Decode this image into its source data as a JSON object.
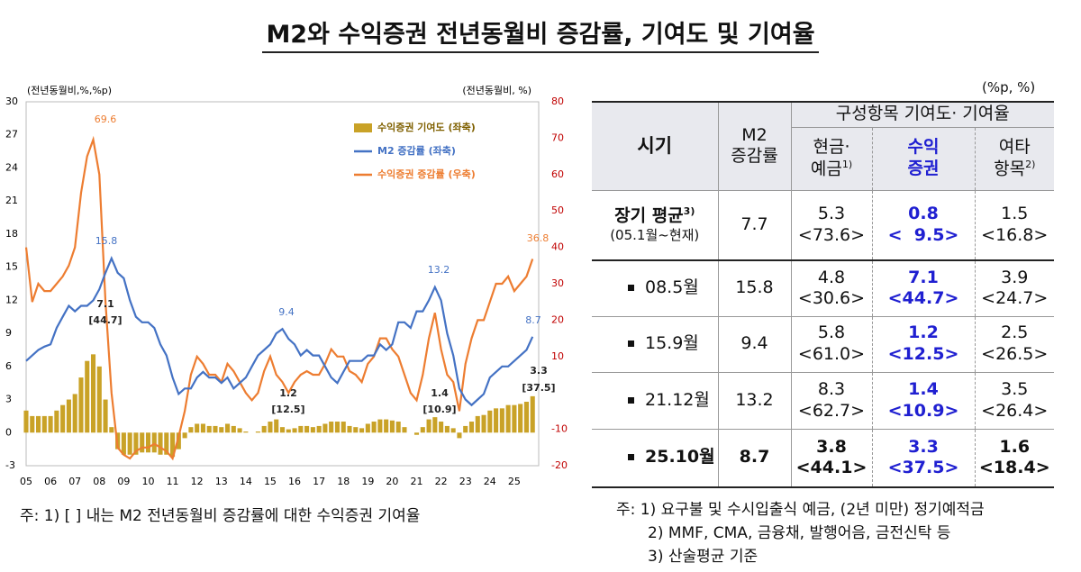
{
  "title": "M2와 수익증권 전년동월비 증감률, 기여도 및 기여율",
  "chart_data": {
    "type": "combo",
    "ylabel": "(전년동월비,%,%p)",
    "y2label": "(전년동월비, %)",
    "x": [
      2005,
      2005.25,
      2005.5,
      2005.75,
      2006,
      2006.25,
      2006.5,
      2006.75,
      2007,
      2007.25,
      2007.5,
      2007.75,
      2008,
      2008.25,
      2008.5,
      2008.75,
      2009,
      2009.25,
      2009.5,
      2009.75,
      2010,
      2010.25,
      2010.5,
      2010.75,
      2011,
      2011.25,
      2011.5,
      2011.75,
      2012,
      2012.25,
      2012.5,
      2012.75,
      2013,
      2013.25,
      2013.5,
      2013.75,
      2014,
      2014.25,
      2014.5,
      2014.75,
      2015,
      2015.25,
      2015.5,
      2015.75,
      2016,
      2016.25,
      2016.5,
      2016.75,
      2017,
      2017.25,
      2017.5,
      2017.75,
      2018,
      2018.25,
      2018.5,
      2018.75,
      2019,
      2019.25,
      2019.5,
      2019.75,
      2020,
      2020.25,
      2020.5,
      2020.75,
      2021,
      2021.25,
      2021.5,
      2021.75,
      2022,
      2022.25,
      2022.5,
      2022.75,
      2023,
      2023.25,
      2023.5,
      2023.75,
      2024,
      2024.25,
      2024.5,
      2024.75,
      2025,
      2025.25,
      2025.5,
      2025.75
    ],
    "xlim": [
      2005,
      2026
    ],
    "xticks": [
      {
        "value": 2005,
        "label": "05"
      },
      {
        "value": 2006,
        "label": "06"
      },
      {
        "value": 2007,
        "label": "07"
      },
      {
        "value": 2008,
        "label": "08"
      },
      {
        "value": 2009,
        "label": "09"
      },
      {
        "value": 2010,
        "label": "10"
      },
      {
        "value": 2011,
        "label": "11"
      },
      {
        "value": 2012,
        "label": "12"
      },
      {
        "value": 2013,
        "label": "13"
      },
      {
        "value": 2014,
        "label": "14"
      },
      {
        "value": 2015,
        "label": "15"
      },
      {
        "value": 2016,
        "label": "16"
      },
      {
        "value": 2017,
        "label": "17"
      },
      {
        "value": 2018,
        "label": "18"
      },
      {
        "value": 2019,
        "label": "19"
      },
      {
        "value": 2020,
        "label": "20"
      },
      {
        "value": 2021,
        "label": "21"
      },
      {
        "value": 2022,
        "label": "22"
      },
      {
        "value": 2023,
        "label": "23"
      },
      {
        "value": 2024,
        "label": "24"
      },
      {
        "value": 2025,
        "label": "25"
      }
    ],
    "ylim": [
      -3,
      30
    ],
    "yticks": [
      -3,
      0,
      3,
      6,
      9,
      12,
      15,
      18,
      21,
      24,
      27,
      30
    ],
    "y2lim": [
      -20,
      80
    ],
    "y2ticks": [
      -20,
      -10,
      10,
      20,
      30,
      40,
      50,
      60,
      70,
      80
    ],
    "legend": "top-right",
    "series": [
      {
        "name": "수익증권 기여도 (좌축)",
        "type": "bar",
        "color": "#c9a227",
        "values": [
          2,
          1.5,
          1.5,
          1.5,
          1.5,
          2,
          2.5,
          3,
          3.5,
          5,
          6.5,
          7.1,
          6,
          3,
          0.5,
          -1.5,
          -2,
          -2,
          -2,
          -1.8,
          -1.8,
          -1.8,
          -2,
          -2,
          -2.2,
          -1.5,
          -0.5,
          0.5,
          0.8,
          0.8,
          0.6,
          0.6,
          0.5,
          0.8,
          0.6,
          0.4,
          0.1,
          0,
          0.1,
          0.6,
          1,
          1.2,
          0.5,
          0.3,
          0.4,
          0.6,
          0.6,
          0.5,
          0.6,
          0.8,
          1,
          1,
          1,
          0.6,
          0.5,
          0.4,
          0.8,
          1,
          1.2,
          1.2,
          1.1,
          1,
          0.5,
          0,
          -0.2,
          0.5,
          1.2,
          1.4,
          1,
          0.6,
          0.4,
          -0.5,
          0.6,
          1,
          1.5,
          1.6,
          2,
          2.2,
          2.2,
          2.5,
          2.5,
          2.6,
          2.8,
          3.3
        ]
      },
      {
        "name": "수익증권 증감률 (우축)",
        "type": "line",
        "axis": "y2",
        "color": "#ed7d31",
        "values": [
          40,
          25,
          30,
          28,
          28,
          30,
          32,
          35,
          40,
          55,
          65,
          69.6,
          60,
          25,
          0,
          -15,
          -17,
          -18,
          -16,
          -15,
          -15,
          -14,
          -15,
          -16,
          -18,
          -12,
          -5,
          5,
          10,
          8,
          5,
          5,
          3,
          8,
          6,
          3,
          0,
          -2,
          0,
          6,
          10,
          5,
          3,
          0,
          3,
          5,
          6,
          5,
          5,
          8,
          12,
          10,
          10,
          6,
          5,
          3,
          8,
          10,
          15,
          15,
          12,
          10,
          5,
          0,
          -2,
          5,
          15,
          22,
          12,
          5,
          3,
          -5,
          8,
          15,
          20,
          20,
          25,
          30,
          30,
          32,
          28,
          30,
          32,
          36.8
        ]
      },
      {
        "name": "M2 증감률 (좌축)",
        "type": "line",
        "color": "#4472c4",
        "values": [
          6.5,
          7,
          7.5,
          7.8,
          8,
          9.5,
          10.5,
          11.5,
          11,
          11.5,
          11.5,
          12,
          13,
          14.5,
          15.8,
          14.5,
          14,
          12,
          10.5,
          10,
          10,
          9.5,
          8,
          7,
          5,
          3.5,
          4,
          4,
          5,
          5.5,
          5,
          5,
          4.5,
          5,
          4,
          4.5,
          5,
          6,
          7,
          7.5,
          8,
          9,
          9.4,
          8.5,
          8,
          7,
          7.5,
          7,
          7,
          6,
          5,
          4.5,
          5.5,
          6.5,
          6.5,
          6.5,
          7,
          7,
          8,
          7.5,
          8,
          10,
          10,
          9.5,
          11,
          11,
          12,
          13.2,
          12,
          9,
          7,
          4,
          3,
          2.5,
          3,
          3.5,
          5,
          5.5,
          6,
          6,
          6.5,
          7,
          7.5,
          8.7
        ]
      }
    ],
    "annotations": [
      "69.6",
      "15.8",
      "7.1",
      "[44.7]",
      "9.4",
      "1.2",
      "[12.5]",
      "13.2",
      "1.4",
      "[10.9]",
      "36.8",
      "8.7",
      "3.3",
      "[37.5]"
    ],
    "note": "주: 1) [ ] 내는 M2 전년동월비 증감률에 대한 수익증권 기여율"
  },
  "table": {
    "unit": "(%p, %)",
    "headers": {
      "period": "시기",
      "m2": [
        "M2",
        "증감률"
      ],
      "group": "구성항목 기여도· 기여율",
      "cash": [
        "현금·",
        "예금"
      ],
      "cash_note": "1)",
      "securities": [
        "수익",
        "증권"
      ],
      "other": [
        "여타",
        "항목"
      ],
      "other_note": "2)"
    },
    "rows": [
      {
        "period": "장기 평균",
        "note": "3)",
        "range": "(05.1월~현재)",
        "m2": "7.7",
        "cash": [
          "5.3",
          "<73.6>"
        ],
        "securities": [
          "0.8",
          "<  9.5>"
        ],
        "other": [
          "1.5",
          "<16.8>"
        ]
      },
      {
        "period": "08.5월",
        "m2": "15.8",
        "cash": [
          "4.8",
          "<30.6>"
        ],
        "securities": [
          "7.1",
          "<44.7>"
        ],
        "other": [
          "3.9",
          "<24.7>"
        ]
      },
      {
        "period": "15.9월",
        "m2": "9.4",
        "cash": [
          "5.8",
          "<61.0>"
        ],
        "securities": [
          "1.2",
          "<12.5>"
        ],
        "other": [
          "2.5",
          "<26.5>"
        ]
      },
      {
        "period": "21.12월",
        "m2": "13.2",
        "cash": [
          "8.3",
          "<62.7>"
        ],
        "securities": [
          "1.4",
          "<10.9>"
        ],
        "other": [
          "3.5",
          "<26.4>"
        ]
      },
      {
        "period": "25.10월",
        "m2": "8.7",
        "cash": [
          "3.8",
          "<44.1>"
        ],
        "securities": [
          "3.3",
          "<37.5>"
        ],
        "other": [
          "1.6",
          "<18.4>"
        ]
      }
    ],
    "notes": [
      "주: 1) 요구불 및 수시입출식 예금, (2년 미만) 정기예적금",
      "2) MMF, CMA, 금융채, 발행어음, 금전신탁 등",
      "3) 산술평균 기준"
    ]
  }
}
